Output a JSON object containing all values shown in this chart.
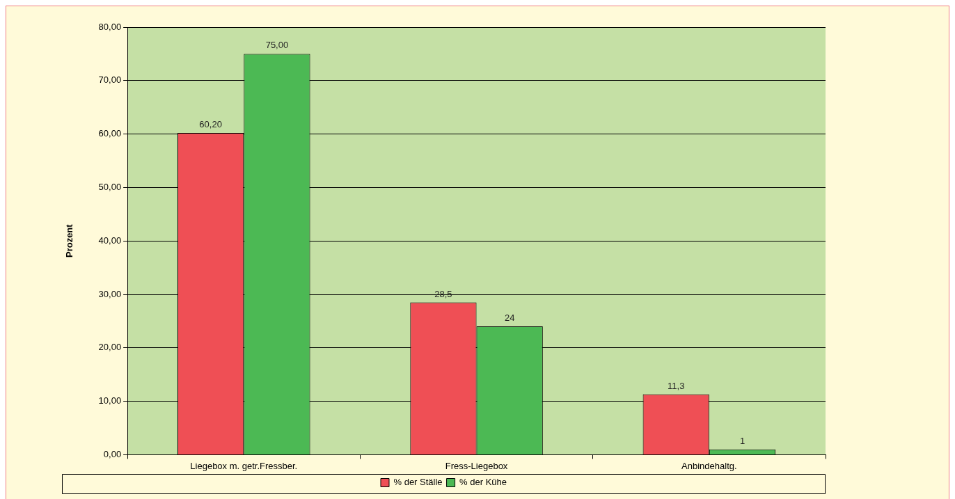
{
  "chart_data": {
    "type": "bar",
    "ylabel": "Prozent",
    "categories": [
      "Liegebox m. getr.Fressber.",
      "Fress-Liegebox",
      "Anbindehaltg."
    ],
    "series": [
      {
        "name": "% der Ställe",
        "color": "#ef4f55",
        "values": [
          60.2,
          28.5,
          11.3
        ],
        "value_labels": [
          "60,20",
          "28,5",
          "11,3"
        ]
      },
      {
        "name": "% der Kühe",
        "color": "#4cb954",
        "values": [
          75,
          24,
          1
        ],
        "value_labels": [
          "75,00",
          "24",
          "1"
        ]
      }
    ],
    "ylim": [
      0,
      80
    ],
    "yticks": [
      {
        "value": 0,
        "label": "0,00"
      },
      {
        "value": 10,
        "label": "10,00"
      },
      {
        "value": 20,
        "label": "20,00"
      },
      {
        "value": 30,
        "label": "30,00"
      },
      {
        "value": 40,
        "label": "40,00"
      },
      {
        "value": 50,
        "label": "50,00"
      },
      {
        "value": 60,
        "label": "60,00"
      },
      {
        "value": 70,
        "label": "70,00"
      },
      {
        "value": 80,
        "label": "80,00"
      }
    ],
    "grid": "y",
    "legend": "bottom"
  }
}
